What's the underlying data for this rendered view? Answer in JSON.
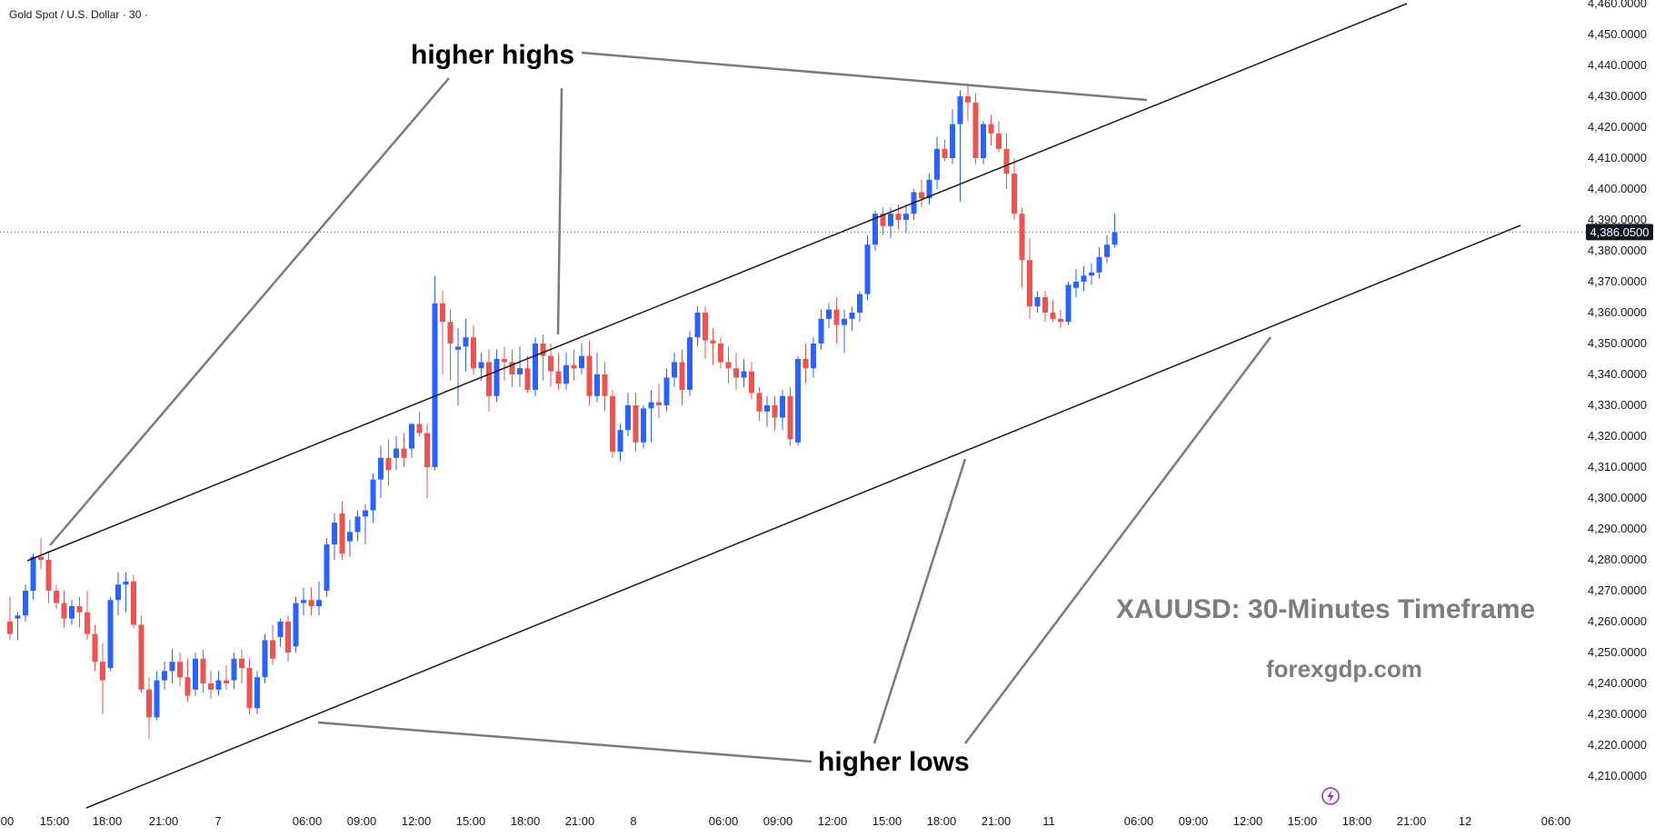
{
  "header": {
    "symbol": "Gold Spot / U.S. Dollar · 30 ·"
  },
  "watermark": {
    "title": "XAUUSD: 30-Minutes Timeframe",
    "site": "forexgdp.com"
  },
  "annotations": {
    "top": "higher highs",
    "bottom": "higher lows"
  },
  "price_label": "4,386.0500",
  "colors": {
    "up": "#2962ff",
    "down": "#ef5350",
    "line": "#1a1a1a",
    "pointer": "#7a7a7a",
    "bolt": "#9c27b0"
  },
  "icons": [
    "lightning-icon"
  ],
  "chart_data": {
    "type": "candlestick",
    "title": "XAUUSD: 30-Minutes Timeframe",
    "ylim": [
      4200,
      4460
    ],
    "y_ticks": [
      "4,210.0000",
      "4,220.0000",
      "4,230.0000",
      "4,240.0000",
      "4,250.0000",
      "4,260.0000",
      "4,270.0000",
      "4,280.0000",
      "4,290.0000",
      "4,300.0000",
      "4,310.0000",
      "4,320.0000",
      "4,330.0000",
      "4,340.0000",
      "4,350.0000",
      "4,360.0000",
      "4,370.0000",
      "4,380.0000",
      "4,390.0000",
      "4,400.0000",
      "4,410.0000",
      "4,420.0000",
      "4,430.0000",
      "4,440.0000",
      "4,450.0000",
      "4,460.0000"
    ],
    "x_ticks": [
      "00",
      "15:00",
      "18:00",
      "21:00",
      "7",
      "06:00",
      "09:00",
      "12:00",
      "15:00",
      "18:00",
      "21:00",
      "8",
      "06:00",
      "09:00",
      "12:00",
      "15:00",
      "18:00",
      "21:00",
      "11",
      "06:00",
      "09:00",
      "12:00",
      "15:00",
      "18:00",
      "21:00",
      "12",
      "06:00"
    ],
    "last_price": 4386.05,
    "grid": false,
    "ohlc": [
      [
        4260,
        4268,
        4254,
        4256
      ],
      [
        4261,
        4263,
        4254,
        4262
      ],
      [
        4262,
        4272,
        4260,
        4270
      ],
      [
        4270,
        4282,
        4267,
        4281
      ],
      [
        4281,
        4287,
        4277,
        4280
      ],
      [
        4280,
        4283,
        4266,
        4270
      ],
      [
        4270,
        4272,
        4264,
        4266
      ],
      [
        4266,
        4270,
        4258,
        4261
      ],
      [
        4261,
        4267,
        4259,
        4265
      ],
      [
        4265,
        4268,
        4258,
        4263
      ],
      [
        4263,
        4270,
        4254,
        4256
      ],
      [
        4256,
        4259,
        4244,
        4247
      ],
      [
        4247,
        4253,
        4230,
        4241
      ],
      [
        4245,
        4268,
        4244,
        4267
      ],
      [
        4267,
        4276,
        4262,
        4272
      ],
      [
        4272,
        4276,
        4263,
        4273
      ],
      [
        4273,
        4275,
        4258,
        4259
      ],
      [
        4259,
        4262,
        4237,
        4238
      ],
      [
        4238,
        4242,
        4222,
        4229
      ],
      [
        4229,
        4244,
        4228,
        4241
      ],
      [
        4241,
        4247,
        4238,
        4244
      ],
      [
        4244,
        4251,
        4240,
        4247
      ],
      [
        4247,
        4250,
        4239,
        4242
      ],
      [
        4242,
        4248,
        4234,
        4236
      ],
      [
        4238,
        4250,
        4236,
        4248
      ],
      [
        4248,
        4251,
        4237,
        4240
      ],
      [
        4240,
        4244,
        4235,
        4238
      ],
      [
        4238,
        4244,
        4236,
        4241
      ],
      [
        4241,
        4246,
        4238,
        4240
      ],
      [
        4241,
        4250,
        4238,
        4248
      ],
      [
        4248,
        4251,
        4240,
        4245
      ],
      [
        4245,
        4248,
        4230,
        4232
      ],
      [
        4232,
        4244,
        4230,
        4242
      ],
      [
        4242,
        4256,
        4240,
        4254
      ],
      [
        4254,
        4259,
        4246,
        4248
      ],
      [
        4255,
        4261,
        4252,
        4260
      ],
      [
        4260,
        4262,
        4247,
        4250
      ],
      [
        4252,
        4268,
        4250,
        4266
      ],
      [
        4266,
        4271,
        4262,
        4267
      ],
      [
        4267,
        4271,
        4262,
        4265
      ],
      [
        4265,
        4273,
        4262,
        4267
      ],
      [
        4270,
        4287,
        4268,
        4285
      ],
      [
        4285,
        4295,
        4280,
        4292
      ],
      [
        4295,
        4299,
        4280,
        4282
      ],
      [
        4286,
        4293,
        4281,
        4289
      ],
      [
        4289,
        4296,
        4286,
        4294
      ],
      [
        4294,
        4298,
        4285,
        4296
      ],
      [
        4296,
        4308,
        4292,
        4306
      ],
      [
        4306,
        4317,
        4300,
        4313
      ],
      [
        4313,
        4319,
        4304,
        4309
      ],
      [
        4313,
        4320,
        4309,
        4316
      ],
      [
        4316,
        4321,
        4310,
        4313
      ],
      [
        4316,
        4324,
        4313,
        4324
      ],
      [
        4324,
        4328,
        4320,
        4321
      ],
      [
        4321,
        4324,
        4300,
        4310
      ],
      [
        4310,
        4372,
        4309,
        4363
      ],
      [
        4363,
        4367,
        4340,
        4357
      ],
      [
        4357,
        4361,
        4338,
        4350
      ],
      [
        4348,
        4355,
        4330,
        4349
      ],
      [
        4349,
        4358,
        4341,
        4352
      ],
      [
        4352,
        4356,
        4340,
        4342
      ],
      [
        4342,
        4347,
        4338,
        4344
      ],
      [
        4344,
        4348,
        4328,
        4333
      ],
      [
        4333,
        4348,
        4331,
        4345
      ],
      [
        4345,
        4349,
        4338,
        4344
      ],
      [
        4344,
        4348,
        4336,
        4340
      ],
      [
        4340,
        4349,
        4336,
        4342
      ],
      [
        4342,
        4346,
        4334,
        4335
      ],
      [
        4335,
        4352,
        4333,
        4350
      ],
      [
        4350,
        4353,
        4338,
        4346
      ],
      [
        4346,
        4350,
        4336,
        4341
      ],
      [
        4341,
        4347,
        4335,
        4337
      ],
      [
        4337,
        4347,
        4335,
        4343
      ],
      [
        4343,
        4348,
        4338,
        4342
      ],
      [
        4342,
        4350,
        4340,
        4346
      ],
      [
        4346,
        4351,
        4330,
        4333
      ],
      [
        4333,
        4347,
        4331,
        4340
      ],
      [
        4340,
        4344,
        4328,
        4333
      ],
      [
        4333,
        4335,
        4313,
        4315
      ],
      [
        4315,
        4324,
        4312,
        4322
      ],
      [
        4322,
        4334,
        4320,
        4330
      ],
      [
        4330,
        4334,
        4315,
        4318
      ],
      [
        4318,
        4330,
        4316,
        4329
      ],
      [
        4329,
        4335,
        4318,
        4331
      ],
      [
        4331,
        4337,
        4326,
        4330
      ],
      [
        4330,
        4342,
        4328,
        4339
      ],
      [
        4339,
        4347,
        4336,
        4344
      ],
      [
        4344,
        4348,
        4330,
        4335
      ],
      [
        4335,
        4354,
        4333,
        4352
      ],
      [
        4352,
        4362,
        4349,
        4360
      ],
      [
        4360,
        4362,
        4345,
        4351
      ],
      [
        4351,
        4355,
        4343,
        4350
      ],
      [
        4350,
        4352,
        4342,
        4344
      ],
      [
        4344,
        4349,
        4337,
        4342
      ],
      [
        4342,
        4347,
        4335,
        4339
      ],
      [
        4339,
        4345,
        4336,
        4341
      ],
      [
        4341,
        4344,
        4332,
        4334
      ],
      [
        4334,
        4336,
        4325,
        4328
      ],
      [
        4328,
        4333,
        4323,
        4330
      ],
      [
        4330,
        4333,
        4322,
        4326
      ],
      [
        4326,
        4335,
        4322,
        4333
      ],
      [
        4333,
        4336,
        4317,
        4319
      ],
      [
        4318,
        4346,
        4317,
        4345
      ],
      [
        4345,
        4350,
        4337,
        4342
      ],
      [
        4342,
        4352,
        4339,
        4350
      ],
      [
        4350,
        4361,
        4348,
        4358
      ],
      [
        4358,
        4363,
        4355,
        4361
      ],
      [
        4361,
        4365,
        4350,
        4356
      ],
      [
        4356,
        4361,
        4347,
        4358
      ],
      [
        4358,
        4362,
        4354,
        4360
      ],
      [
        4360,
        4367,
        4357,
        4366
      ],
      [
        4366,
        4385,
        4364,
        4382
      ],
      [
        4382,
        4393,
        4380,
        4392
      ],
      [
        4392,
        4394,
        4385,
        4388
      ],
      [
        4388,
        4394,
        4384,
        4392
      ],
      [
        4392,
        4395,
        4387,
        4390
      ],
      [
        4390,
        4395,
        4386,
        4392
      ],
      [
        4392,
        4400,
        4390,
        4399
      ],
      [
        4399,
        4403,
        4394,
        4397
      ],
      [
        4397,
        4405,
        4395,
        4403
      ],
      [
        4403,
        4417,
        4400,
        4413
      ],
      [
        4413,
        4416,
        4409,
        4410
      ],
      [
        4410,
        4426,
        4408,
        4421
      ],
      [
        4421,
        4432,
        4396,
        4430
      ],
      [
        4430,
        4434,
        4422,
        4428
      ],
      [
        4428,
        4431,
        4408,
        4410
      ],
      [
        4410,
        4422,
        4408,
        4421
      ],
      [
        4421,
        4424,
        4414,
        4418
      ],
      [
        4418,
        4422,
        4412,
        4413
      ],
      [
        4413,
        4418,
        4400,
        4405
      ],
      [
        4405,
        4410,
        4390,
        4392
      ],
      [
        4392,
        4394,
        4368,
        4377
      ],
      [
        4377,
        4384,
        4358,
        4362
      ],
      [
        4362,
        4367,
        4360,
        4365
      ],
      [
        4365,
        4367,
        4357,
        4360
      ],
      [
        4360,
        4364,
        4357,
        4358
      ],
      [
        4358,
        4361,
        4355,
        4357
      ],
      [
        4357,
        4370,
        4356,
        4369
      ],
      [
        4368,
        4374,
        4365,
        4370
      ],
      [
        4370,
        4375,
        4367,
        4372
      ],
      [
        4372,
        4376,
        4369,
        4373
      ],
      [
        4373,
        4381,
        4371,
        4378
      ],
      [
        4378,
        4385,
        4376,
        4382
      ],
      [
        4382,
        4392,
        4381,
        4386
      ]
    ]
  }
}
